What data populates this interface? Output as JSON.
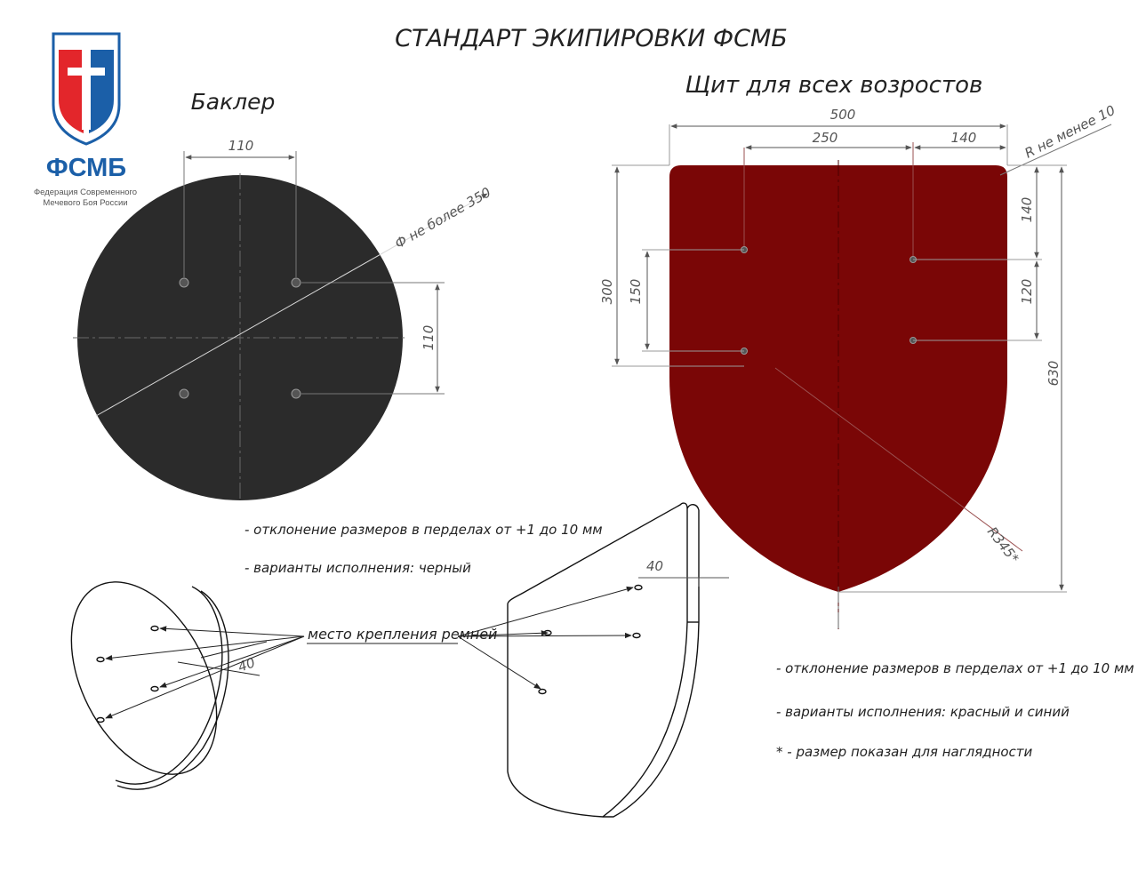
{
  "title": "СТАНДАРТ ЭКИПИРОВКИ ФСМБ",
  "logo": {
    "abbr": "ФСМБ",
    "line1": "Федерация Современного",
    "line2": "Мечевого Боя России",
    "colors": {
      "red": "#e3262b",
      "blue": "#1b5fa8"
    }
  },
  "buckler": {
    "heading": "Баклер",
    "dim_top": "110",
    "dim_right": "110",
    "dim_diameter": "Ф не более 350",
    "color": "#2b2b2b",
    "notes": [
      "- отклонение размеров в перделах от +1 до 10 мм",
      "- варианты исполнения: черный"
    ]
  },
  "shield": {
    "heading": "Щит для всех возростов",
    "color": "#7a0606",
    "dims": {
      "width": "500",
      "inner_width": "250",
      "offset": "140",
      "corner_radius": "R не менее 10",
      "left_outer": "300",
      "left_inner": "150",
      "right_top": "140",
      "right_middle": "120",
      "height": "630",
      "arc_radius": "R345*"
    },
    "notes": [
      "- отклонение размеров в перделах от +1 до 10 мм",
      "- варианты исполнения: красный и синий",
      "* - размер показан для наглядности"
    ]
  },
  "iso": {
    "strap_label": "место крепления ремней",
    "buckler_thickness": "40",
    "shield_thickness": "40"
  }
}
